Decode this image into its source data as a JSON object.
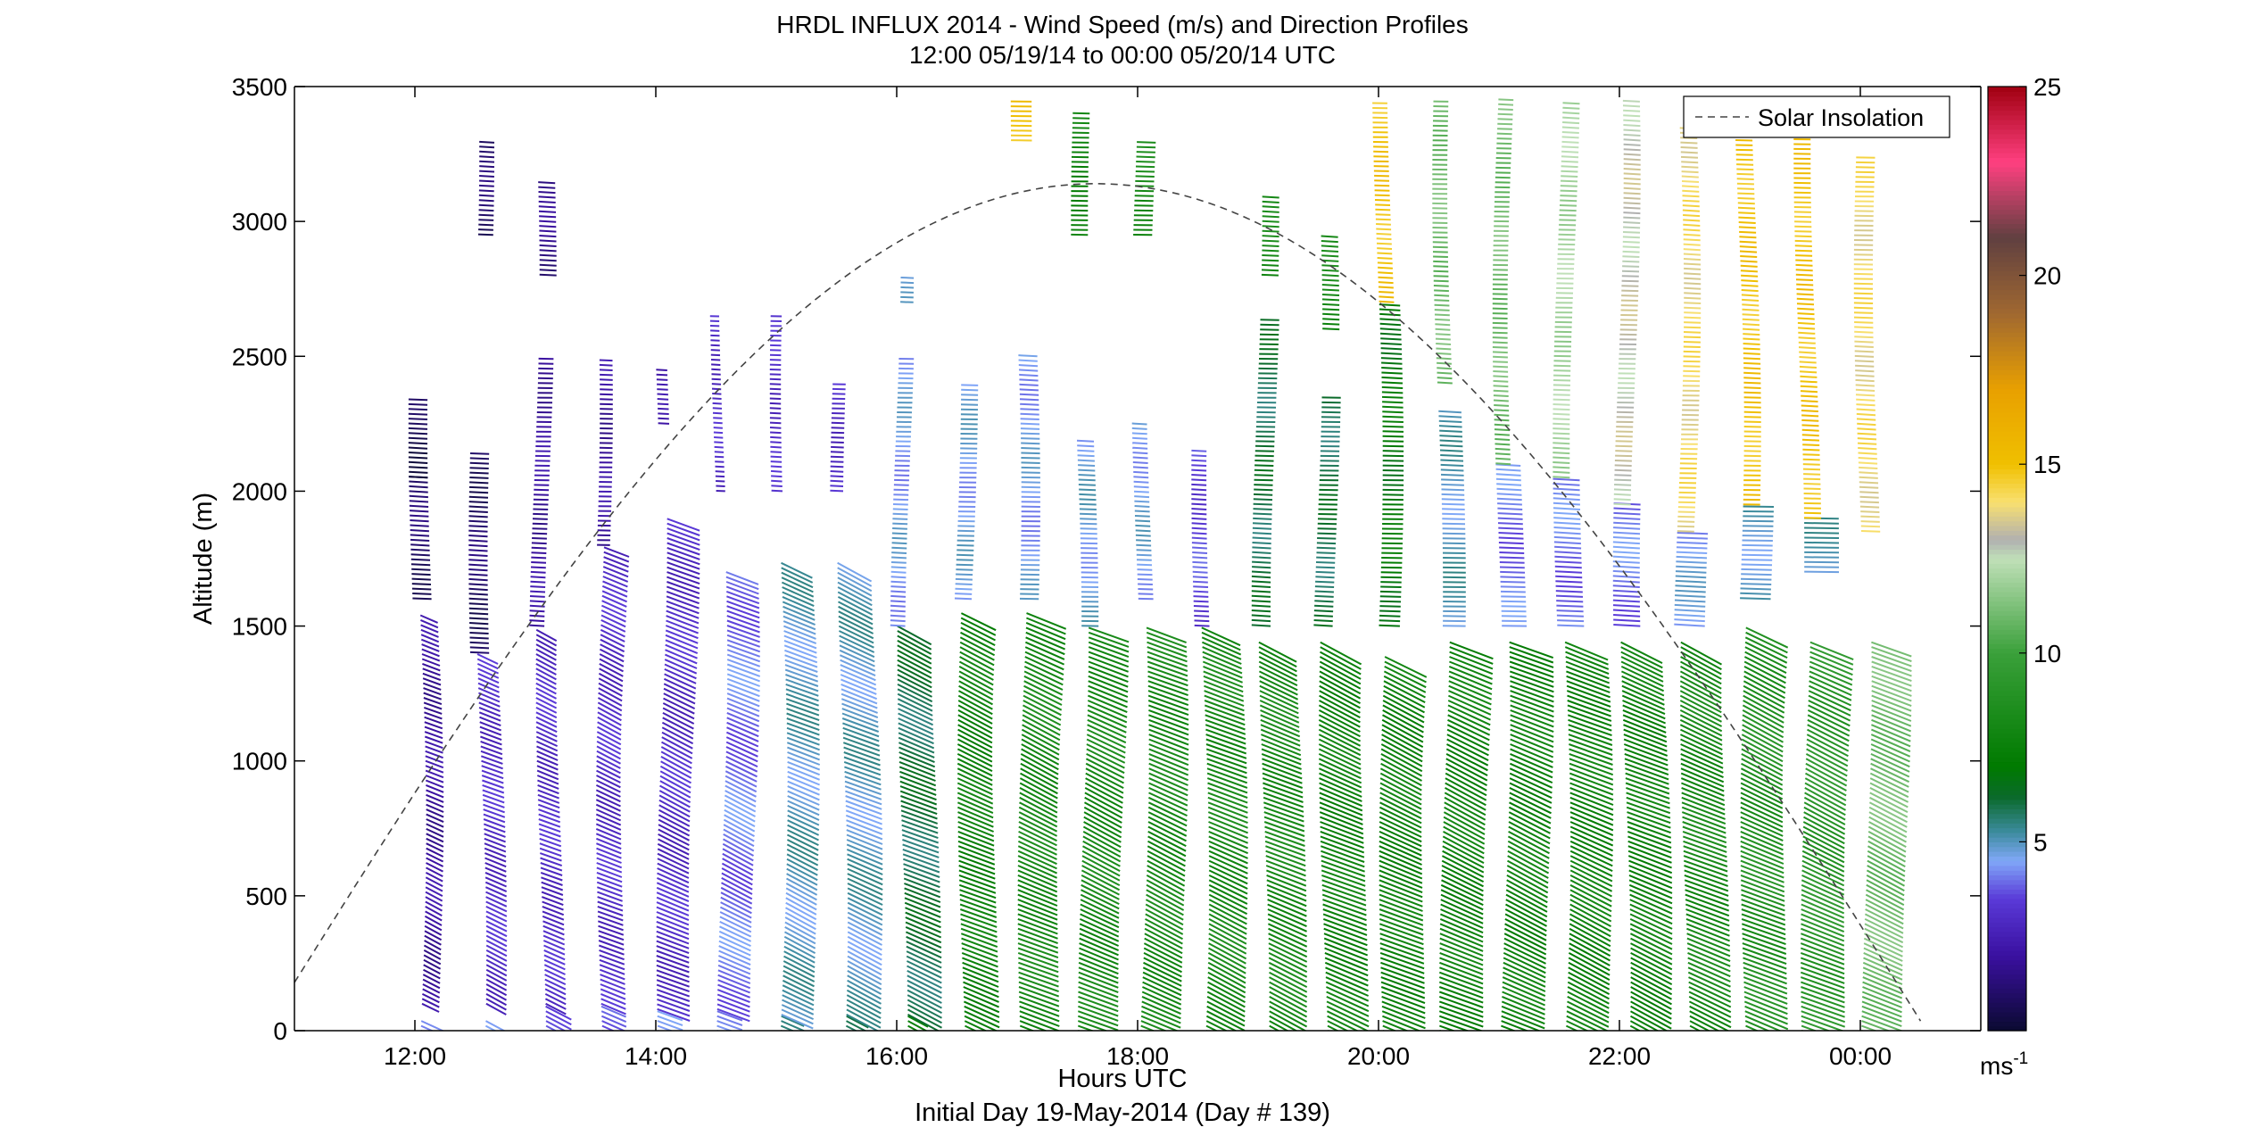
{
  "chart_data": {
    "type": "wind-profile",
    "title": "HRDL INFLUX 2014 - Wind Speed (m/s) and Direction Profiles",
    "subtitle": "12:00 05/19/14 to 00:00 05/20/14  UTC",
    "xlabel": "Hours UTC",
    "xlabel2": "Initial Day 19-May-2014 (Day # 139)",
    "ylabel": "Altitude (m)",
    "xlim_hours": [
      11.0,
      25.0
    ],
    "ylim": [
      0,
      3500
    ],
    "x_ticks": [
      {
        "hour": 12,
        "label": "12:00"
      },
      {
        "hour": 14,
        "label": "14:00"
      },
      {
        "hour": 16,
        "label": "16:00"
      },
      {
        "hour": 18,
        "label": "18:00"
      },
      {
        "hour": 20,
        "label": "20:00"
      },
      {
        "hour": 22,
        "label": "22:00"
      },
      {
        "hour": 24,
        "label": "00:00"
      }
    ],
    "y_ticks": [
      0,
      500,
      1000,
      1500,
      2000,
      2500,
      3000,
      3500
    ],
    "legend": {
      "label": "Solar Insolation",
      "placement": "top-right",
      "style": "dashed"
    },
    "solar_insolation": {
      "peak_hour": 17.65,
      "peak_altitude": 3140,
      "zero_hour": 24.55
    },
    "colorbar": {
      "range": [
        0,
        25
      ],
      "ticks": [
        5,
        10,
        15,
        20,
        25
      ],
      "unit_label": "ms",
      "unit_exponent": "-1",
      "stops": [
        {
          "v": 0,
          "c": "#0a0a30"
        },
        {
          "v": 2,
          "c": "#3a10a0"
        },
        {
          "v": 3.5,
          "c": "#5a3ad8"
        },
        {
          "v": 4.5,
          "c": "#80a8f8"
        },
        {
          "v": 5.3,
          "c": "#3a8a9a"
        },
        {
          "v": 6.2,
          "c": "#0a6a2a"
        },
        {
          "v": 7,
          "c": "#007a00"
        },
        {
          "v": 10,
          "c": "#3aa03a"
        },
        {
          "v": 12.5,
          "c": "#c0e0b8"
        },
        {
          "v": 13,
          "c": "#b0b0b0"
        },
        {
          "v": 14,
          "c": "#f8e070"
        },
        {
          "v": 15,
          "c": "#f0c000"
        },
        {
          "v": 17,
          "c": "#e8a000"
        },
        {
          "v": 19,
          "c": "#a06830"
        },
        {
          "v": 21,
          "c": "#604040"
        },
        {
          "v": 23,
          "c": "#ff4080"
        },
        {
          "v": 25,
          "c": "#a00010"
        }
      ]
    },
    "profiles": [
      {
        "hour": 12.05,
        "segments": [
          [
            0,
            50,
            11,
            4
          ],
          [
            100,
            1550,
            6,
            2
          ],
          [
            1600,
            2050,
            -6,
            1
          ],
          [
            2050,
            2350,
            -6,
            0.5
          ]
        ]
      },
      {
        "hour": 12.55,
        "segments": [
          [
            0,
            50,
            12,
            4
          ],
          [
            100,
            1400,
            8,
            3
          ],
          [
            1400,
            2150,
            -6,
            1
          ],
          [
            2950,
            3300,
            -4,
            1
          ]
        ]
      },
      {
        "hour": 13.05,
        "segments": [
          [
            0,
            100,
            11,
            4
          ],
          [
            100,
            1500,
            8,
            3
          ],
          [
            1500,
            2500,
            -4,
            2
          ],
          [
            2800,
            3150,
            -5,
            1.5
          ]
        ]
      },
      {
        "hour": 13.55,
        "segments": [
          [
            0,
            100,
            10,
            4
          ],
          [
            100,
            1800,
            10,
            3
          ],
          [
            1800,
            2500,
            -3,
            2
          ]
        ]
      },
      {
        "hour": 14.05,
        "segments": [
          [
            0,
            80,
            10,
            4
          ],
          [
            80,
            1900,
            14,
            3
          ],
          [
            2250,
            2450,
            -2,
            2
          ]
        ]
      },
      {
        "hour": 14.55,
        "segments": [
          [
            0,
            80,
            10,
            4
          ],
          [
            80,
            1700,
            14,
            4
          ],
          [
            2000,
            2650,
            -1,
            3
          ]
        ]
      },
      {
        "hour": 15.05,
        "segments": [
          [
            0,
            60,
            9,
            6
          ],
          [
            60,
            1750,
            14,
            5
          ],
          [
            2000,
            2650,
            -2,
            3
          ]
        ]
      },
      {
        "hour": 15.55,
        "segments": [
          [
            0,
            60,
            9,
            6
          ],
          [
            60,
            1750,
            16,
            5
          ],
          [
            2000,
            2400,
            -3,
            3
          ]
        ]
      },
      {
        "hour": 16.05,
        "segments": [
          [
            0,
            60,
            8,
            7
          ],
          [
            60,
            1500,
            16,
            6
          ],
          [
            1500,
            2500,
            -4,
            4.5
          ],
          [
            2700,
            2800,
            -3,
            4.5
          ]
        ]
      },
      {
        "hour": 16.55,
        "segments": [
          [
            0,
            1550,
            16,
            7.5
          ],
          [
            1600,
            2400,
            -5,
            4.6
          ]
        ]
      },
      {
        "hour": 17.05,
        "segments": [
          [
            0,
            1550,
            18,
            8
          ],
          [
            1600,
            2500,
            -6,
            4.5
          ],
          [
            3300,
            3450,
            -7,
            15
          ]
        ]
      },
      {
        "hour": 17.55,
        "segments": [
          [
            0,
            1500,
            18,
            8
          ],
          [
            1500,
            2200,
            -5,
            4.7
          ],
          [
            2950,
            3400,
            -5,
            7.5
          ]
        ]
      },
      {
        "hour": 18.05,
        "segments": [
          [
            0,
            1500,
            18,
            8
          ],
          [
            1600,
            2250,
            -4,
            4.6
          ],
          [
            2950,
            3300,
            -6,
            8
          ]
        ]
      },
      {
        "hour": 18.55,
        "segments": [
          [
            0,
            1500,
            18,
            8
          ],
          [
            1500,
            2150,
            -4,
            3.5
          ]
        ]
      },
      {
        "hour": 19.05,
        "segments": [
          [
            0,
            1450,
            18,
            8
          ],
          [
            1500,
            2650,
            -6,
            6
          ],
          [
            2800,
            3100,
            -5,
            8
          ]
        ]
      },
      {
        "hour": 19.55,
        "segments": [
          [
            0,
            1450,
            20,
            7.5
          ],
          [
            1500,
            2350,
            -6,
            6
          ],
          [
            2600,
            2950,
            -5,
            8
          ]
        ]
      },
      {
        "hour": 20.05,
        "segments": [
          [
            0,
            1400,
            20,
            7.5
          ],
          [
            1500,
            2700,
            -7,
            7
          ],
          [
            2700,
            3450,
            -4,
            15
          ]
        ]
      },
      {
        "hour": 20.55,
        "segments": [
          [
            0,
            1450,
            20,
            7.5
          ],
          [
            1500,
            2300,
            -8,
            5
          ],
          [
            2400,
            3450,
            -4,
            11
          ]
        ]
      },
      {
        "hour": 21.05,
        "segments": [
          [
            0,
            1450,
            20,
            7.5
          ],
          [
            1500,
            2100,
            -9,
            4
          ],
          [
            2100,
            3450,
            -4,
            11
          ]
        ]
      },
      {
        "hour": 21.55,
        "segments": [
          [
            0,
            1450,
            20,
            7.5
          ],
          [
            1500,
            2050,
            -10,
            4
          ],
          [
            2050,
            3450,
            -5,
            12
          ]
        ]
      },
      {
        "hour": 22.05,
        "segments": [
          [
            0,
            1450,
            20,
            7.5
          ],
          [
            1500,
            1950,
            -10,
            4
          ],
          [
            1950,
            3450,
            -5,
            13
          ]
        ]
      },
      {
        "hour": 22.55,
        "segments": [
          [
            0,
            1450,
            20,
            8
          ],
          [
            1500,
            1850,
            -12,
            4.5
          ],
          [
            1850,
            3350,
            -5,
            14
          ]
        ]
      },
      {
        "hour": 23.05,
        "segments": [
          [
            0,
            1500,
            20,
            8.5
          ],
          [
            1600,
            1950,
            -12,
            5
          ],
          [
            1950,
            3450,
            -5,
            15
          ]
        ]
      },
      {
        "hour": 23.55,
        "segments": [
          [
            0,
            1450,
            20,
            9
          ],
          [
            1700,
            1900,
            -14,
            5
          ],
          [
            1900,
            3450,
            -5,
            15
          ]
        ]
      },
      {
        "hour": 24.05,
        "segments": [
          [
            0,
            1450,
            18,
            11
          ],
          [
            1850,
            3250,
            -6,
            14
          ]
        ]
      }
    ]
  }
}
